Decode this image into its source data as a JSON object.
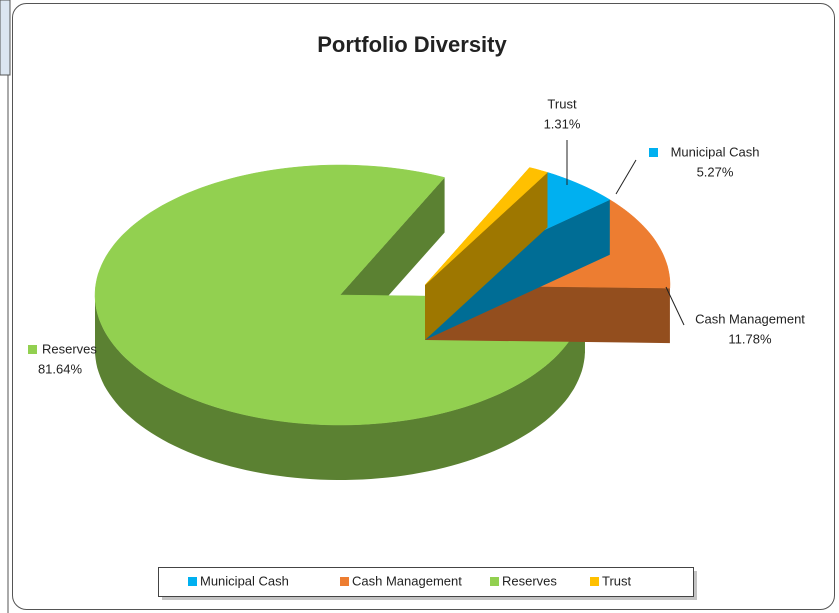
{
  "chart_data": {
    "type": "pie3d",
    "title": "Portfolio Diversity",
    "categories": [
      "Municipal Cash",
      "Cash Management",
      "Reserves",
      "Trust"
    ],
    "values": [
      5.27,
      11.78,
      81.64,
      1.31
    ],
    "value_labels": [
      "5.27%",
      "11.78%",
      "81.64%",
      "1.31%"
    ],
    "colors": [
      "#00b0f0",
      "#ed7d31",
      "#92d050",
      "#ffc000"
    ],
    "legend": "bottom"
  }
}
